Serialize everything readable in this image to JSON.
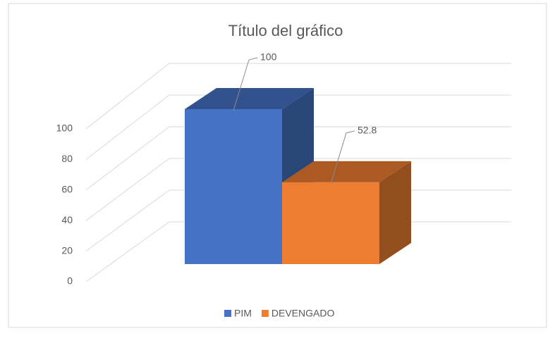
{
  "chart_data": {
    "type": "bar3d",
    "title": "Título del gráfico",
    "categories": [
      null
    ],
    "series": [
      {
        "name": "PIM",
        "color": "#4472c4",
        "values": [
          100
        ]
      },
      {
        "name": "DEVENGADO",
        "color": "#ed7d31",
        "values": [
          52.8
        ]
      }
    ],
    "ylim": [
      0,
      100
    ],
    "yticks": [
      0,
      20,
      40,
      60,
      80,
      100
    ],
    "grid": true,
    "legend": "bottom",
    "data_labels": true
  }
}
